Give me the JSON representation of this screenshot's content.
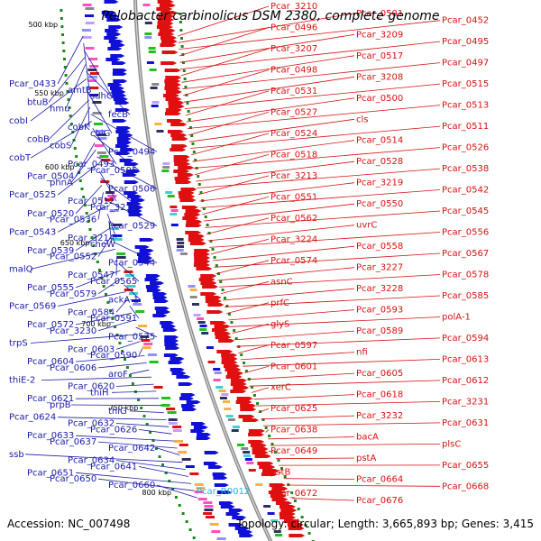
{
  "title": "Pelobacter carbinolicus DSM 2380, complete genome",
  "accession": "Accession: NC_007498",
  "topology": "Topology: circular; Length: 3,665,893 bp; Genes: 3,415",
  "colors": {
    "left_label": "#1a1aa8",
    "right_label": "#d81010",
    "rna_label": "#20b8d8",
    "backbone": "#8c8c8c",
    "forward_genes": "#e01010",
    "reverse_genes": "#1010d8",
    "tick_marks": "#1a8a1a"
  },
  "ticks": [
    "500 kbp",
    "550 kbp",
    "600 kbp",
    "650 kbp",
    "700 kbp",
    "750 kbp",
    "800 kbp"
  ],
  "left_labels": [
    "Pcar_0433",
    "amtB",
    "sdhC",
    "btuB",
    "hmu",
    "fecB",
    "cobI",
    "cobK",
    "cbiG",
    "cobB",
    "cobS",
    "Pcar_0494",
    "cobT",
    "Pcar_0493",
    "Pcar_0505",
    "Pcar_0504",
    "phnA",
    "Pcar_0506",
    "Pcar_0525",
    "Pcar_0512",
    "Pcar_3212",
    "Pcar_0520",
    "Pcar_0536",
    "Pcar_0529",
    "Pcar_0543",
    "Pcar_3214",
    "cheW",
    "Pcar_0539",
    "Pcar_0552",
    "Pcar_0544",
    "malQ",
    "Pcar_0547",
    "Pcar_0565",
    "Pcar_0555",
    "Pcar_0579",
    "ackA-1",
    "Pcar_0569",
    "Pcar_0584",
    "Pcar_0591",
    "Pcar_0572",
    "Pcar_3230",
    "Pcar_0575",
    "trpS",
    "Pcar_0603",
    "Pcar_0590",
    "Pcar_0604",
    "Pcar_0606",
    "aroF",
    "thiE-2",
    "Pcar_0620",
    "thiH",
    "Pcar_0621",
    "prpB",
    "thiG",
    "Pcar_0624",
    "Pcar_0632",
    "Pcar_0626",
    "Pcar_0633",
    "Pcar_0637",
    "Pcar_0642",
    "ssb",
    "Pcar_0634",
    "Pcar_0641",
    "Pcar_0651",
    "Pcar_0650",
    "Pcar_0660"
  ],
  "rna_label": "Pcar_R0012",
  "right_labels": [
    "Pcar_3210",
    "Pcar_0501",
    "Pcar_0452",
    "Pcar_0496",
    "Pcar_3209",
    "Pcar_0495",
    "Pcar_3207",
    "Pcar_0517",
    "Pcar_0497",
    "Pcar_0498",
    "Pcar_3208",
    "Pcar_0515",
    "Pcar_0531",
    "Pcar_0500",
    "Pcar_0513",
    "Pcar_0527",
    "cls",
    "Pcar_0511",
    "Pcar_0524",
    "Pcar_0514",
    "Pcar_0526",
    "Pcar_0518",
    "Pcar_0528",
    "Pcar_0538",
    "Pcar_3213",
    "Pcar_3219",
    "Pcar_0542",
    "Pcar_0551",
    "Pcar_0550",
    "Pcar_0545",
    "Pcar_0562",
    "uvrC",
    "Pcar_0556",
    "Pcar_3224",
    "Pcar_0558",
    "Pcar_0567",
    "Pcar_0574",
    "Pcar_3227",
    "Pcar_0578",
    "asnC",
    "Pcar_3228",
    "Pcar_0585",
    "prfC",
    "Pcar_0593",
    "polA-1",
    "glyS",
    "Pcar_0589",
    "Pcar_0594",
    "Pcar_0597",
    "nfi",
    "Pcar_0613",
    "Pcar_0601",
    "Pcar_0605",
    "Pcar_0612",
    "xerC",
    "Pcar_0618",
    "Pcar_3231",
    "Pcar_0625",
    "Pcar_3232",
    "Pcar_0631",
    "Pcar_0638",
    "bacA",
    "plsC",
    "Pcar_0649",
    "pstA",
    "Pcar_0655",
    "pstB",
    "Pcar_0664",
    "Pcar_0668",
    "Pcar_0672",
    "Pcar_0676"
  ]
}
